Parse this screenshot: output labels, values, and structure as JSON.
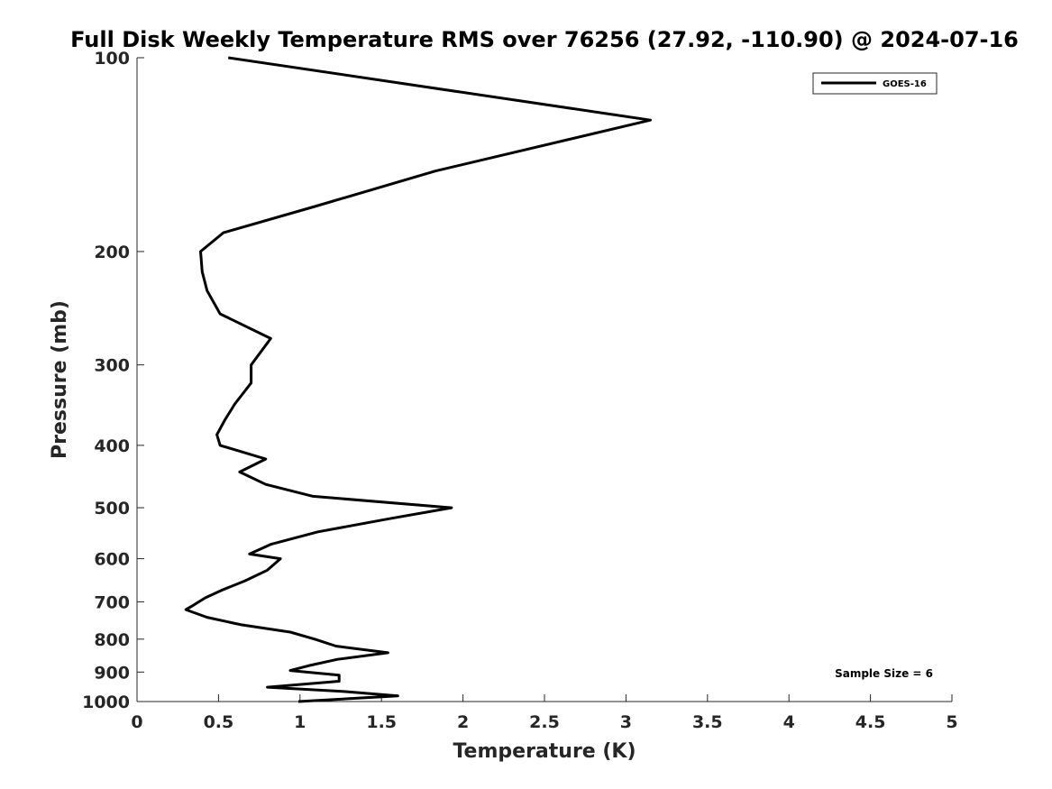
{
  "chart_data": {
    "type": "line",
    "title": "Full Disk Weekly Temperature RMS over 76256 (27.92, -110.90) @ 2024-07-16",
    "xlabel": "Temperature (K)",
    "ylabel": "Pressure (mb)",
    "xlim": [
      0,
      5
    ],
    "ylim": [
      100,
      1000
    ],
    "y_scale": "log",
    "y_reversed": true,
    "x_ticks": [
      0,
      0.5,
      1,
      1.5,
      2,
      2.5,
      3,
      3.5,
      4,
      4.5,
      5
    ],
    "x_tick_labels": [
      "0",
      "0.5",
      "1",
      "1.5",
      "2",
      "2.5",
      "3",
      "3.5",
      "4",
      "4.5",
      "5"
    ],
    "y_ticks": [
      100,
      200,
      300,
      400,
      500,
      600,
      700,
      800,
      900,
      1000
    ],
    "y_tick_labels": [
      "100",
      "200",
      "300",
      "400",
      "500",
      "600",
      "700",
      "800",
      "900",
      "1000"
    ],
    "grid": false,
    "legend_position": "top-right",
    "series": [
      {
        "name": "GOES-16",
        "color": "#000000",
        "points": [
          [
            0.56,
            100
          ],
          [
            3.15,
            125
          ],
          [
            1.83,
            150
          ],
          [
            1.1,
            170
          ],
          [
            0.53,
            187
          ],
          [
            0.39,
            200
          ],
          [
            0.4,
            215
          ],
          [
            0.43,
            230
          ],
          [
            0.51,
            250
          ],
          [
            0.82,
            273
          ],
          [
            0.7,
            300
          ],
          [
            0.7,
            320
          ],
          [
            0.6,
            345
          ],
          [
            0.54,
            365
          ],
          [
            0.49,
            385
          ],
          [
            0.51,
            400
          ],
          [
            0.79,
            420
          ],
          [
            0.63,
            440
          ],
          [
            0.79,
            460
          ],
          [
            1.08,
            480
          ],
          [
            1.93,
            500
          ],
          [
            1.55,
            520
          ],
          [
            1.11,
            545
          ],
          [
            0.82,
            570
          ],
          [
            0.69,
            590
          ],
          [
            0.88,
            600
          ],
          [
            0.8,
            625
          ],
          [
            0.66,
            650
          ],
          [
            0.53,
            670
          ],
          [
            0.42,
            690
          ],
          [
            0.34,
            710
          ],
          [
            0.3,
            720
          ],
          [
            0.43,
            740
          ],
          [
            0.64,
            760
          ],
          [
            0.94,
            780
          ],
          [
            1.09,
            800
          ],
          [
            1.22,
            820
          ],
          [
            1.54,
            840
          ],
          [
            1.23,
            860
          ],
          [
            1.05,
            880
          ],
          [
            0.94,
            895
          ],
          [
            1.24,
            910
          ],
          [
            1.24,
            930
          ],
          [
            0.8,
            950
          ],
          [
            1.28,
            965
          ],
          [
            1.6,
            980
          ],
          [
            0.99,
            1000
          ]
        ]
      }
    ],
    "annotation": "Sample Size = 6"
  }
}
